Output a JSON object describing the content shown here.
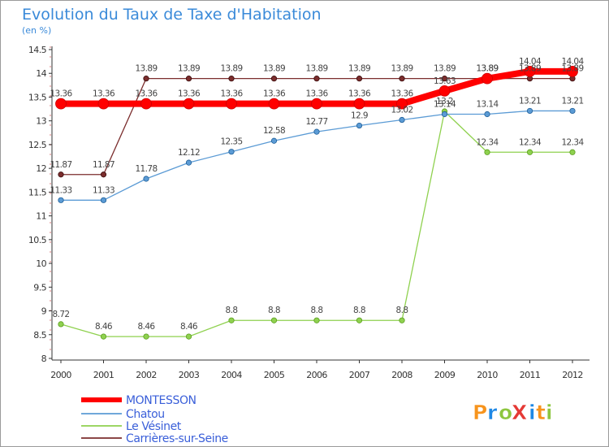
{
  "chart_data": {
    "type": "line",
    "title": "Evolution du Taux de Taxe d'Habitation",
    "unit_label": "(en %)",
    "x": [
      "2000",
      "2001",
      "2002",
      "2003",
      "2004",
      "2005",
      "2006",
      "2007",
      "2008",
      "2009",
      "2010",
      "2011",
      "2012"
    ],
    "ylim": [
      8,
      14.5
    ],
    "y_ticks": [
      "8",
      "8.5",
      "9",
      "9.5",
      "10",
      "10.5",
      "11",
      "11.5",
      "12",
      "12.5",
      "13",
      "13.5",
      "14",
      "14.5"
    ],
    "grid": false,
    "legend_position": "bottom-left",
    "series": [
      {
        "name": "MONTESSON",
        "color": "#ff0000",
        "values": [
          13.36,
          13.36,
          13.36,
          13.36,
          13.36,
          13.36,
          13.36,
          13.36,
          13.36,
          13.63,
          13.89,
          14.04,
          14.04
        ],
        "labels": [
          "13.36",
          "13.36",
          "13.36",
          "13.36",
          "13.36",
          "13.36",
          "13.36",
          "13.36",
          "13.36",
          "13.63",
          "13.89",
          "14.04",
          "14.04"
        ]
      },
      {
        "name": "Chatou",
        "color": "#5b9bd5",
        "values": [
          11.33,
          11.33,
          11.78,
          12.12,
          12.35,
          12.58,
          12.77,
          12.9,
          13.02,
          13.14,
          13.14,
          13.21,
          13.21
        ],
        "labels": [
          "11.33",
          "11.33",
          "11.78",
          "12.12",
          "12.35",
          "12.58",
          "12.77",
          "12.9",
          "13.02",
          "13.14",
          "13.14",
          "13.21",
          "13.21"
        ]
      },
      {
        "name": "Le Vésinet",
        "color": "#8fd14f",
        "values": [
          8.72,
          8.46,
          8.46,
          8.46,
          8.8,
          8.8,
          8.8,
          8.8,
          8.8,
          13.2,
          12.34,
          12.34,
          12.34
        ],
        "labels": [
          "8.72",
          "8.46",
          "8.46",
          "8.46",
          "8.8",
          "8.8",
          "8.8",
          "8.8",
          "8.8",
          "13.2",
          "12.34",
          "12.34",
          "12.34"
        ]
      },
      {
        "name": "Carrières-sur-Seine",
        "color": "#7b2d2d",
        "values": [
          11.87,
          11.87,
          13.89,
          13.89,
          13.89,
          13.89,
          13.89,
          13.89,
          13.89,
          13.89,
          13.89,
          13.89,
          13.89
        ],
        "labels": [
          "11.87",
          "11.87",
          "13.89",
          "13.89",
          "13.89",
          "13.89",
          "13.89",
          "13.89",
          "13.89",
          "13.89",
          "13.89",
          "13.89",
          "13.89"
        ]
      }
    ]
  },
  "logo": {
    "text": "ProXiti",
    "letters": [
      "P",
      "r",
      "o",
      "X",
      "i",
      "t",
      "i"
    ],
    "colors": [
      "#f7941d",
      "#1e88e5",
      "#8dc63f",
      "#e53935",
      "#1e88e5",
      "#f7941d",
      "#8dc63f"
    ]
  }
}
